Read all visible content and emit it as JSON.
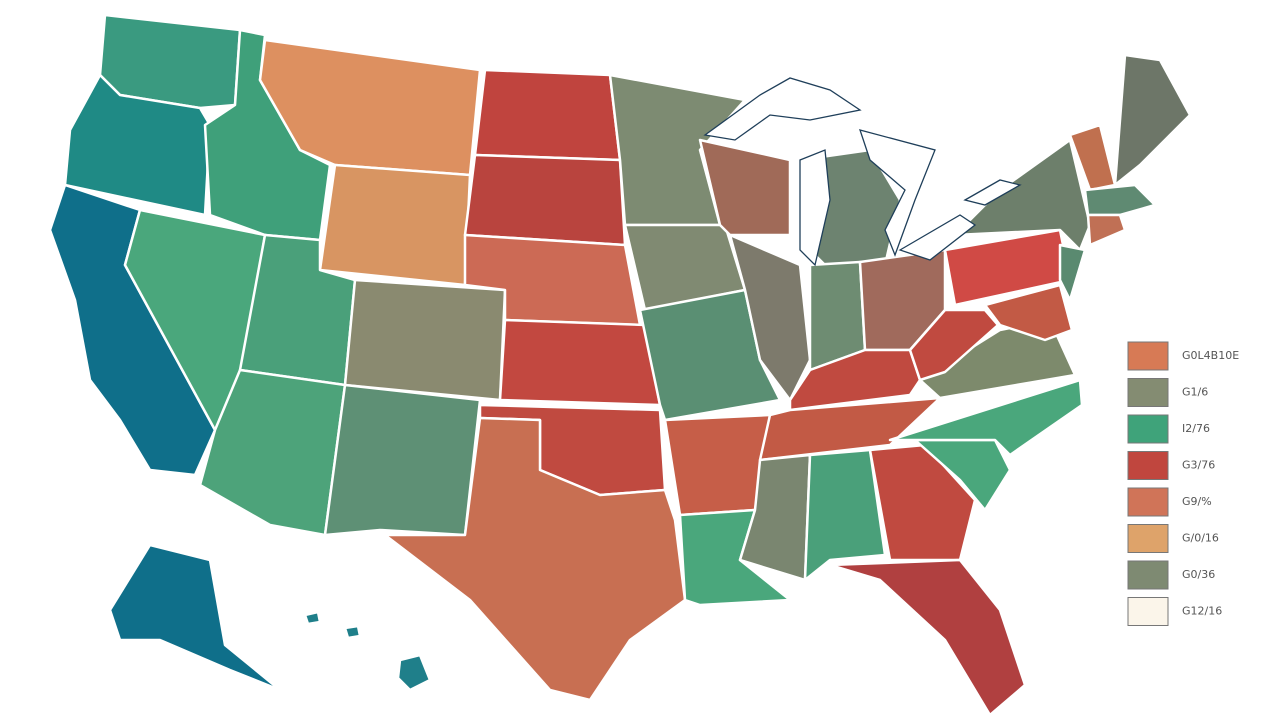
{
  "legend": {
    "items": [
      {
        "label": "G0L4B10E",
        "color": "#d77a55"
      },
      {
        "label": "G1/6",
        "color": "#848c72"
      },
      {
        "label": "I2/76",
        "color": "#3fa37a"
      },
      {
        "label": "G3/76",
        "color": "#c0463e"
      },
      {
        "label": "G9/%",
        "color": "#d07458"
      },
      {
        "label": "G/0/16",
        "color": "#dea36a"
      },
      {
        "label": "G0/36",
        "color": "#7e8a72"
      },
      {
        "label": "G12/16",
        "color": "#fbf5ea"
      }
    ]
  }
}
